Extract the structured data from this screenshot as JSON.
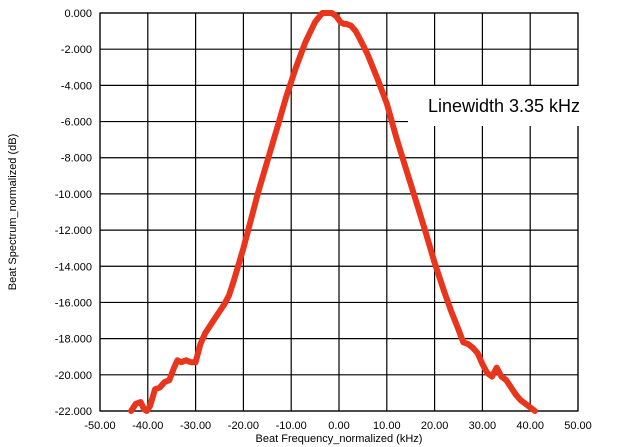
{
  "chart_data": {
    "type": "line",
    "title": "",
    "xlabel": "Beat Frequency_normalized (kHz)",
    "ylabel": "Beat Spectrum_normalized (dB)",
    "xlim": [
      -50,
      50
    ],
    "ylim": [
      -22,
      0
    ],
    "x_ticks": [
      -50,
      -40,
      -30,
      -20,
      -10,
      0,
      10,
      20,
      30,
      40,
      50
    ],
    "x_tick_labels": [
      "-50.00",
      "-40.00",
      "-30.00",
      "-20.00",
      "-10.00",
      "0.00",
      "10.00",
      "20.00",
      "30.00",
      "40.00",
      "50.00"
    ],
    "y_ticks": [
      0,
      -2,
      -4,
      -6,
      -8,
      -10,
      -12,
      -14,
      -16,
      -18,
      -20,
      -22
    ],
    "y_tick_labels": [
      "0.000",
      "-2.000",
      "-4.000",
      "-6.000",
      "-8.000",
      "-10.000",
      "-12.000",
      "-14.000",
      "-16.000",
      "-18.000",
      "-20.000",
      "-22.000"
    ],
    "grid": true,
    "line_color": "#e8351c",
    "annotation": "Linewidth 3.35 kHz",
    "series": [
      {
        "name": "",
        "x": [
          -43.5,
          -42.5,
          -41.5,
          -40.8,
          -40.2,
          -39.5,
          -38.5,
          -37.5,
          -36.5,
          -35.5,
          -34.5,
          -33.8,
          -33.0,
          -32.0,
          -31.0,
          -30.0,
          -29.0,
          -28.0,
          -27.0,
          -26.0,
          -25.0,
          -24.0,
          -23.0,
          -22.0,
          -21.0,
          -20.0,
          -19.0,
          -18.0,
          -17.0,
          -15.0,
          -13.0,
          -11.0,
          -9.0,
          -7.0,
          -5.0,
          -3.5,
          -2.5,
          -1.5,
          -0.5,
          0.3,
          1.0,
          1.5,
          2.5,
          3.5,
          4.5,
          6.0,
          8.0,
          10.0,
          12.0,
          14.0,
          16.0,
          18.0,
          20.0,
          22.0,
          23.5,
          25.0,
          26.0,
          27.0,
          28.0,
          29.0,
          30.0,
          31.0,
          32.0,
          33.0,
          34.0,
          35.0,
          36.0,
          37.0,
          38.0,
          39.0,
          40.0,
          41.0
        ],
        "y": [
          -22.0,
          -21.6,
          -21.5,
          -21.9,
          -22.0,
          -21.7,
          -20.8,
          -20.7,
          -20.4,
          -20.3,
          -19.6,
          -19.2,
          -19.3,
          -19.2,
          -19.3,
          -19.3,
          -18.3,
          -17.7,
          -17.3,
          -16.9,
          -16.5,
          -16.1,
          -15.6,
          -14.8,
          -13.9,
          -13.0,
          -12.0,
          -11.0,
          -10.0,
          -8.2,
          -6.4,
          -4.6,
          -3.0,
          -1.6,
          -0.5,
          0.0,
          0.0,
          0.0,
          -0.2,
          -0.5,
          -0.6,
          -0.6,
          -0.7,
          -1.0,
          -1.5,
          -2.3,
          -3.6,
          -5.0,
          -6.9,
          -8.6,
          -10.3,
          -12.0,
          -13.8,
          -15.4,
          -16.5,
          -17.5,
          -18.2,
          -18.3,
          -18.5,
          -18.8,
          -19.4,
          -19.9,
          -20.1,
          -19.6,
          -20.1,
          -20.3,
          -20.7,
          -21.1,
          -21.4,
          -21.6,
          -21.8,
          -22.0
        ]
      }
    ]
  }
}
